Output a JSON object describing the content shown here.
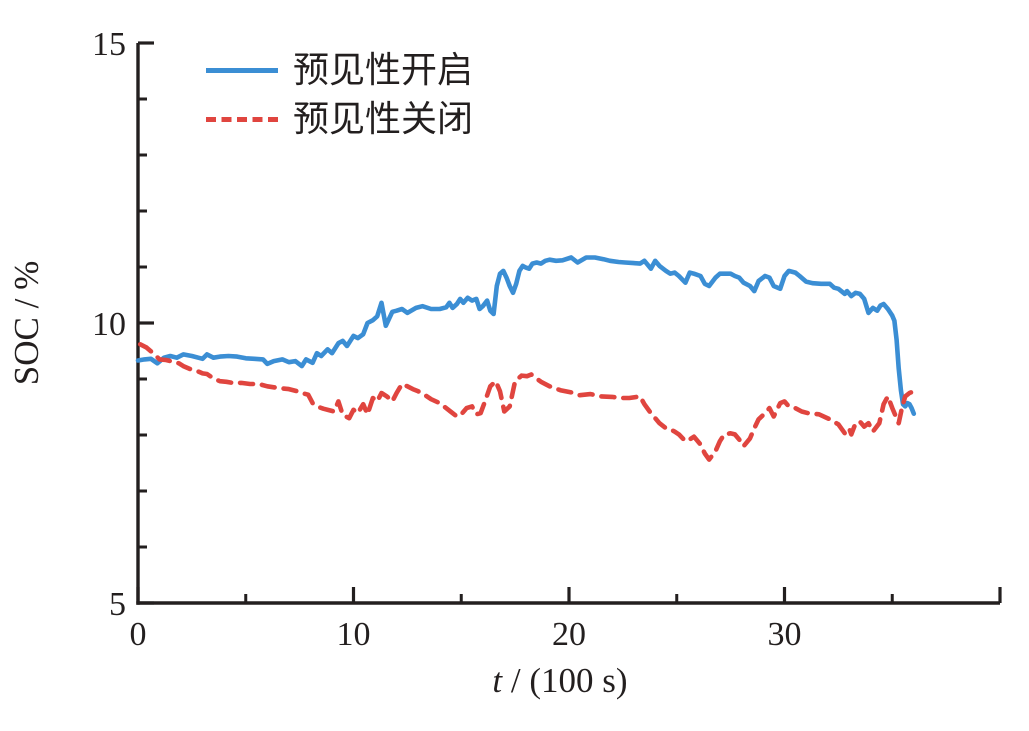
{
  "figure": {
    "background": "#ffffff",
    "axis_color": "#231f1f",
    "text_color": "#231f1f"
  },
  "chart_data": {
    "type": "line",
    "title": "",
    "xlabel_parts": {
      "variable": "t",
      "rest": " / (100 s)"
    },
    "ylabel": "SOC / %",
    "xlim": [
      0,
      40
    ],
    "ylim": [
      5,
      15
    ],
    "xticks_major": [
      0,
      10,
      20,
      30
    ],
    "xticks_minor": [
      5,
      15,
      25,
      35
    ],
    "xtick_end": 40,
    "yticks_major": [
      5,
      10,
      15
    ],
    "yticks_minor": [
      6,
      7,
      8,
      9,
      11,
      12,
      13,
      14
    ],
    "grid": false,
    "legend_position": "top-left",
    "series": [
      {
        "name": "预见性开启",
        "color": "#3b8ed4",
        "line_style": "solid",
        "points": [
          [
            0,
            9.33
          ],
          [
            0.3,
            9.35
          ],
          [
            0.6,
            9.36
          ],
          [
            0.9,
            9.28
          ],
          [
            1.2,
            9.38
          ],
          [
            1.5,
            9.41
          ],
          [
            1.8,
            9.38
          ],
          [
            2.1,
            9.44
          ],
          [
            2.5,
            9.41
          ],
          [
            2.8,
            9.38
          ],
          [
            3.0,
            9.36
          ],
          [
            3.2,
            9.44
          ],
          [
            3.5,
            9.38
          ],
          [
            3.8,
            9.4
          ],
          [
            4.2,
            9.41
          ],
          [
            4.6,
            9.4
          ],
          [
            5.0,
            9.37
          ],
          [
            5.4,
            9.36
          ],
          [
            5.8,
            9.35
          ],
          [
            6.0,
            9.27
          ],
          [
            6.3,
            9.32
          ],
          [
            6.7,
            9.35
          ],
          [
            7.0,
            9.3
          ],
          [
            7.3,
            9.32
          ],
          [
            7.6,
            9.23
          ],
          [
            7.8,
            9.35
          ],
          [
            8.1,
            9.29
          ],
          [
            8.3,
            9.46
          ],
          [
            8.5,
            9.41
          ],
          [
            8.8,
            9.53
          ],
          [
            9.0,
            9.46
          ],
          [
            9.3,
            9.64
          ],
          [
            9.5,
            9.68
          ],
          [
            9.7,
            9.59
          ],
          [
            10.0,
            9.77
          ],
          [
            10.2,
            9.73
          ],
          [
            10.45,
            9.8
          ],
          [
            10.65,
            10.0
          ],
          [
            10.9,
            10.05
          ],
          [
            11.1,
            10.12
          ],
          [
            11.3,
            10.36
          ],
          [
            11.5,
            9.95
          ],
          [
            11.8,
            10.2
          ],
          [
            12.0,
            10.22
          ],
          [
            12.25,
            10.25
          ],
          [
            12.5,
            10.18
          ],
          [
            12.9,
            10.27
          ],
          [
            13.2,
            10.3
          ],
          [
            13.6,
            10.25
          ],
          [
            14.0,
            10.25
          ],
          [
            14.3,
            10.28
          ],
          [
            14.45,
            10.36
          ],
          [
            14.6,
            10.27
          ],
          [
            14.8,
            10.34
          ],
          [
            14.95,
            10.43
          ],
          [
            15.1,
            10.36
          ],
          [
            15.3,
            10.45
          ],
          [
            15.5,
            10.4
          ],
          [
            15.7,
            10.43
          ],
          [
            15.85,
            10.25
          ],
          [
            16.0,
            10.3
          ],
          [
            16.2,
            10.4
          ],
          [
            16.35,
            10.22
          ],
          [
            16.5,
            10.16
          ],
          [
            16.65,
            10.66
          ],
          [
            16.8,
            10.88
          ],
          [
            16.95,
            10.93
          ],
          [
            17.1,
            10.81
          ],
          [
            17.25,
            10.66
          ],
          [
            17.4,
            10.54
          ],
          [
            17.55,
            10.7
          ],
          [
            17.7,
            10.93
          ],
          [
            17.85,
            11.02
          ],
          [
            18.0,
            10.99
          ],
          [
            18.15,
            10.97
          ],
          [
            18.3,
            11.06
          ],
          [
            18.5,
            11.08
          ],
          [
            18.7,
            11.06
          ],
          [
            18.9,
            11.11
          ],
          [
            19.1,
            11.13
          ],
          [
            19.4,
            11.11
          ],
          [
            19.7,
            11.12
          ],
          [
            20.1,
            11.17
          ],
          [
            20.4,
            11.08
          ],
          [
            20.8,
            11.17
          ],
          [
            21.2,
            11.17
          ],
          [
            21.6,
            11.14
          ],
          [
            21.9,
            11.11
          ],
          [
            22.3,
            11.09
          ],
          [
            22.6,
            11.08
          ],
          [
            23.0,
            11.07
          ],
          [
            23.3,
            11.06
          ],
          [
            23.5,
            11.11
          ],
          [
            23.8,
            10.97
          ],
          [
            24.0,
            11.11
          ],
          [
            24.2,
            11.02
          ],
          [
            24.5,
            10.93
          ],
          [
            24.7,
            10.88
          ],
          [
            24.9,
            10.9
          ],
          [
            25.1,
            10.84
          ],
          [
            25.4,
            10.72
          ],
          [
            25.6,
            10.9
          ],
          [
            25.8,
            10.88
          ],
          [
            26.1,
            10.84
          ],
          [
            26.3,
            10.7
          ],
          [
            26.5,
            10.66
          ],
          [
            26.8,
            10.81
          ],
          [
            27.0,
            10.88
          ],
          [
            27.5,
            10.88
          ],
          [
            27.7,
            10.84
          ],
          [
            27.9,
            10.81
          ],
          [
            28.1,
            10.72
          ],
          [
            28.4,
            10.66
          ],
          [
            28.6,
            10.57
          ],
          [
            28.8,
            10.75
          ],
          [
            29.1,
            10.84
          ],
          [
            29.3,
            10.81
          ],
          [
            29.5,
            10.66
          ],
          [
            29.8,
            10.61
          ],
          [
            30.0,
            10.84
          ],
          [
            30.2,
            10.93
          ],
          [
            30.5,
            10.9
          ],
          [
            30.7,
            10.84
          ],
          [
            31.0,
            10.74
          ],
          [
            31.3,
            10.71
          ],
          [
            31.7,
            10.7
          ],
          [
            32.1,
            10.7
          ],
          [
            32.3,
            10.63
          ],
          [
            32.5,
            10.61
          ],
          [
            32.8,
            10.52
          ],
          [
            32.9,
            10.57
          ],
          [
            33.1,
            10.48
          ],
          [
            33.3,
            10.54
          ],
          [
            33.5,
            10.52
          ],
          [
            33.7,
            10.43
          ],
          [
            33.9,
            10.18
          ],
          [
            34.1,
            10.27
          ],
          [
            34.3,
            10.22
          ],
          [
            34.45,
            10.31
          ],
          [
            34.6,
            10.34
          ],
          [
            34.8,
            10.25
          ],
          [
            35.0,
            10.13
          ],
          [
            35.1,
            10.04
          ],
          [
            35.2,
            9.7
          ],
          [
            35.3,
            9.19
          ],
          [
            35.4,
            8.8
          ],
          [
            35.5,
            8.55
          ],
          [
            35.6,
            8.51
          ],
          [
            35.7,
            8.57
          ],
          [
            35.8,
            8.55
          ],
          [
            35.9,
            8.48
          ],
          [
            36.0,
            8.38
          ]
        ]
      },
      {
        "name": "预见性关闭",
        "color": "#e0453f",
        "line_style": "dashed",
        "points": [
          [
            0.1,
            9.62
          ],
          [
            0.4,
            9.56
          ],
          [
            0.7,
            9.46
          ],
          [
            1.0,
            9.35
          ],
          [
            1.3,
            9.34
          ],
          [
            1.6,
            9.31
          ],
          [
            1.9,
            9.28
          ],
          [
            2.1,
            9.23
          ],
          [
            2.4,
            9.18
          ],
          [
            2.7,
            9.15
          ],
          [
            3.0,
            9.1
          ],
          [
            3.2,
            9.09
          ],
          [
            3.5,
            9.01
          ],
          [
            3.8,
            8.96
          ],
          [
            4.1,
            8.95
          ],
          [
            4.4,
            8.93
          ],
          [
            4.8,
            8.93
          ],
          [
            5.2,
            8.91
          ],
          [
            5.6,
            8.91
          ],
          [
            6.0,
            8.87
          ],
          [
            6.5,
            8.84
          ],
          [
            7.0,
            8.82
          ],
          [
            7.4,
            8.78
          ],
          [
            7.6,
            8.75
          ],
          [
            7.9,
            8.72
          ],
          [
            8.1,
            8.57
          ],
          [
            8.3,
            8.51
          ],
          [
            8.6,
            8.47
          ],
          [
            8.9,
            8.44
          ],
          [
            9.1,
            8.42
          ],
          [
            9.3,
            8.6
          ],
          [
            9.5,
            8.36
          ],
          [
            9.8,
            8.3
          ],
          [
            10.0,
            8.45
          ],
          [
            10.2,
            8.39
          ],
          [
            10.45,
            8.55
          ],
          [
            10.65,
            8.37
          ],
          [
            10.9,
            8.66
          ],
          [
            11.1,
            8.6
          ],
          [
            11.3,
            8.75
          ],
          [
            11.55,
            8.69
          ],
          [
            11.8,
            8.6
          ],
          [
            12.0,
            8.75
          ],
          [
            12.25,
            8.91
          ],
          [
            12.5,
            8.87
          ],
          [
            12.75,
            8.82
          ],
          [
            13.0,
            8.78
          ],
          [
            13.25,
            8.73
          ],
          [
            13.6,
            8.64
          ],
          [
            14.0,
            8.57
          ],
          [
            14.5,
            8.42
          ],
          [
            14.8,
            8.33
          ],
          [
            15.0,
            8.37
          ],
          [
            15.25,
            8.48
          ],
          [
            15.5,
            8.51
          ],
          [
            15.7,
            8.37
          ],
          [
            15.9,
            8.39
          ],
          [
            16.1,
            8.6
          ],
          [
            16.35,
            8.87
          ],
          [
            16.6,
            8.96
          ],
          [
            16.8,
            8.78
          ],
          [
            17.0,
            8.42
          ],
          [
            17.25,
            8.51
          ],
          [
            17.5,
            8.96
          ],
          [
            17.8,
            9.06
          ],
          [
            18.05,
            9.05
          ],
          [
            18.25,
            9.08
          ],
          [
            18.45,
            9.02
          ],
          [
            18.7,
            8.95
          ],
          [
            19.1,
            8.87
          ],
          [
            19.6,
            8.8
          ],
          [
            20.1,
            8.76
          ],
          [
            20.5,
            8.71
          ],
          [
            21.0,
            8.73
          ],
          [
            21.5,
            8.69
          ],
          [
            22.0,
            8.68
          ],
          [
            22.4,
            8.66
          ],
          [
            22.8,
            8.66
          ],
          [
            23.3,
            8.69
          ],
          [
            23.5,
            8.55
          ],
          [
            23.8,
            8.39
          ],
          [
            24.0,
            8.3
          ],
          [
            24.2,
            8.21
          ],
          [
            24.5,
            8.12
          ],
          [
            24.7,
            8.1
          ],
          [
            24.9,
            8.06
          ],
          [
            25.1,
            8.01
          ],
          [
            25.4,
            7.89
          ],
          [
            25.6,
            7.92
          ],
          [
            25.8,
            7.97
          ],
          [
            26.1,
            7.83
          ],
          [
            26.3,
            7.67
          ],
          [
            26.5,
            7.56
          ],
          [
            26.8,
            7.71
          ],
          [
            27.0,
            7.89
          ],
          [
            27.2,
            8.01
          ],
          [
            27.5,
            8.03
          ],
          [
            27.7,
            8.01
          ],
          [
            27.9,
            7.92
          ],
          [
            28.1,
            7.8
          ],
          [
            28.4,
            7.94
          ],
          [
            28.6,
            8.12
          ],
          [
            28.8,
            8.28
          ],
          [
            29.1,
            8.39
          ],
          [
            29.3,
            8.48
          ],
          [
            29.5,
            8.33
          ],
          [
            29.8,
            8.57
          ],
          [
            30.0,
            8.6
          ],
          [
            30.2,
            8.51
          ],
          [
            30.5,
            8.48
          ],
          [
            30.8,
            8.42
          ],
          [
            31.1,
            8.39
          ],
          [
            31.6,
            8.37
          ],
          [
            32.1,
            8.28
          ],
          [
            32.5,
            8.19
          ],
          [
            32.8,
            8.03
          ],
          [
            33.0,
            8.12
          ],
          [
            33.1,
            8.01
          ],
          [
            33.3,
            8.21
          ],
          [
            33.5,
            8.24
          ],
          [
            33.7,
            8.15
          ],
          [
            33.9,
            8.21
          ],
          [
            34.1,
            8.06
          ],
          [
            34.4,
            8.21
          ],
          [
            34.6,
            8.55
          ],
          [
            34.8,
            8.69
          ],
          [
            35.0,
            8.48
          ],
          [
            35.2,
            8.3
          ],
          [
            35.3,
            8.21
          ],
          [
            35.45,
            8.48
          ],
          [
            35.6,
            8.69
          ],
          [
            35.8,
            8.75
          ],
          [
            36.0,
            8.78
          ]
        ]
      }
    ]
  }
}
